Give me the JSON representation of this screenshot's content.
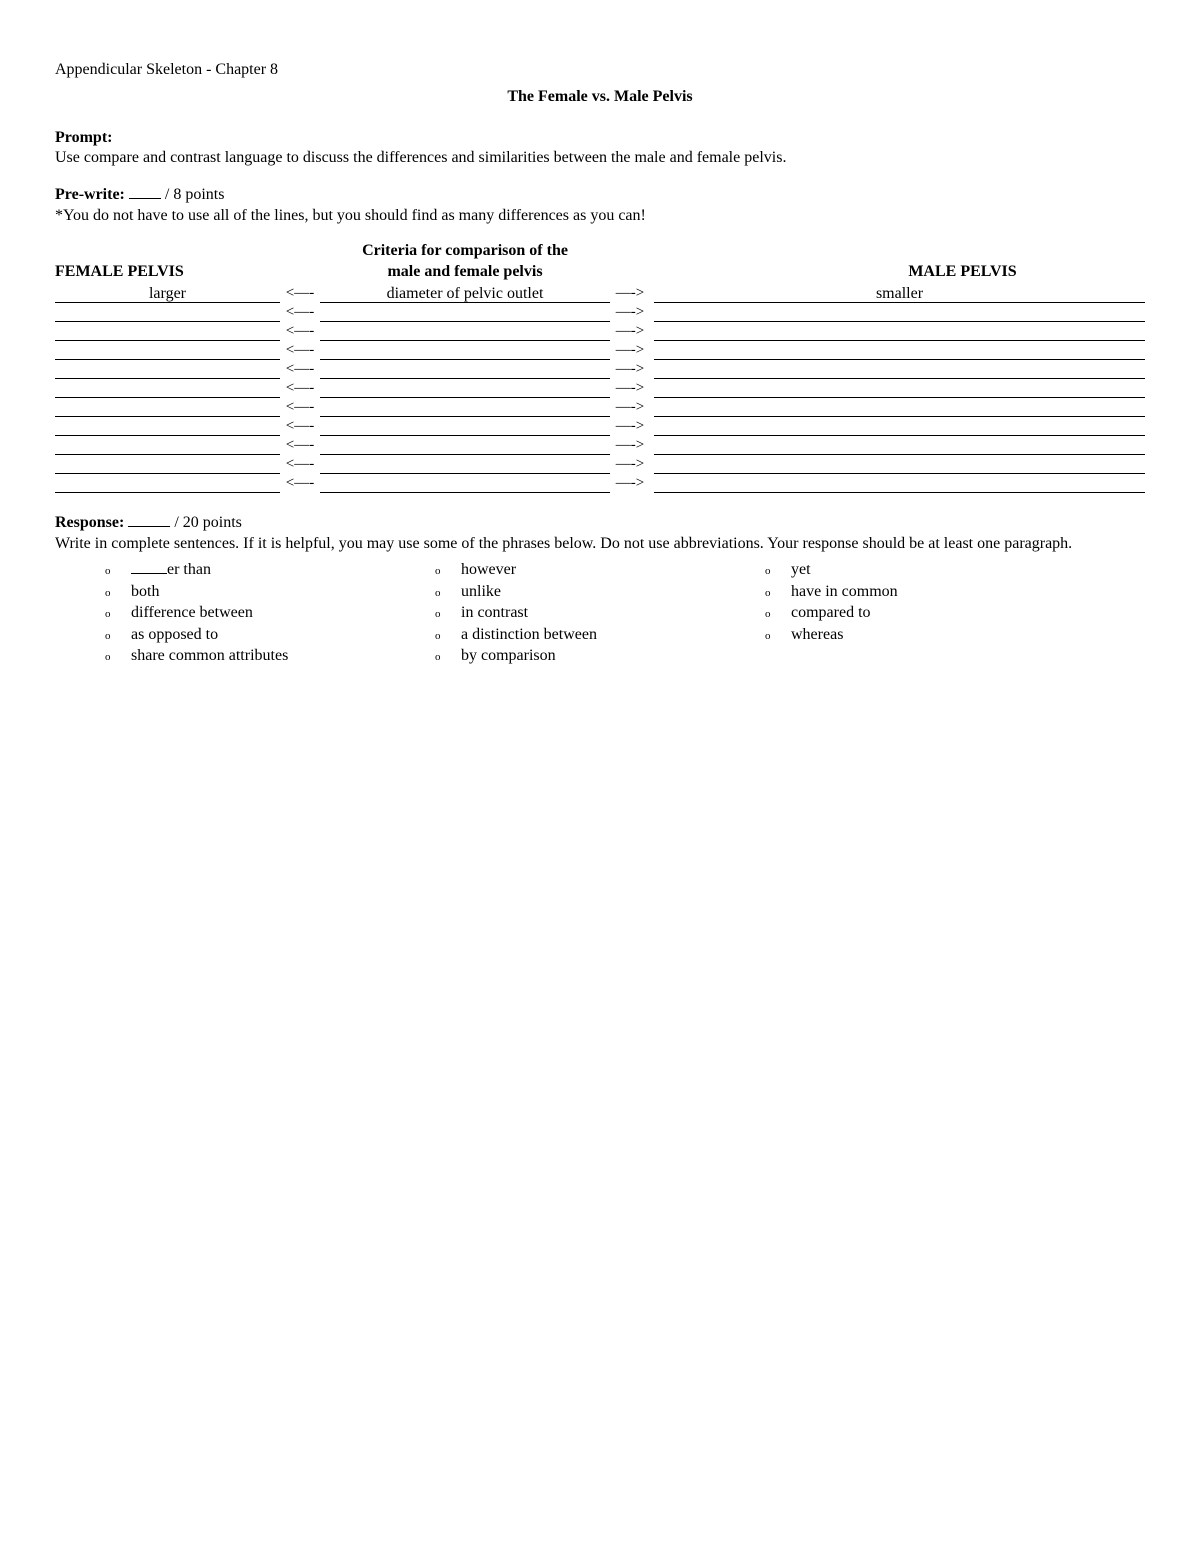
{
  "chapter": "Appendicular Skeleton - Chapter 8",
  "title": "The Female vs. Male Pelvis",
  "prompt": {
    "label": "Prompt:",
    "text": "Use compare and contrast language to discuss the differences and similarities between the male and female pelvis."
  },
  "prewrite": {
    "label": "Pre-write:",
    "points": "/ 8 points",
    "note": "*You do not have to use all of the lines, but you should find as many differences as you can!"
  },
  "table": {
    "head_female": "FEMALE PELVIS",
    "head_criteria_line1": "Criteria for comparison of the",
    "head_criteria_line2": "male and female pelvis",
    "head_male": "MALE PELVIS",
    "arrow_left": "<—-",
    "arrow_right": "—->",
    "rows": [
      {
        "female": "larger",
        "criteria": "diameter of pelvic outlet",
        "male": "smaller"
      },
      {
        "female": "",
        "criteria": "",
        "male": ""
      },
      {
        "female": "",
        "criteria": "",
        "male": ""
      },
      {
        "female": "",
        "criteria": "",
        "male": ""
      },
      {
        "female": "",
        "criteria": "",
        "male": ""
      },
      {
        "female": "",
        "criteria": "",
        "male": ""
      },
      {
        "female": "",
        "criteria": "",
        "male": ""
      },
      {
        "female": "",
        "criteria": "",
        "male": ""
      },
      {
        "female": "",
        "criteria": "",
        "male": ""
      },
      {
        "female": "",
        "criteria": "",
        "male": ""
      },
      {
        "female": "",
        "criteria": "",
        "male": ""
      }
    ]
  },
  "response": {
    "label": "Response:",
    "points": "/ 20 points",
    "instructions": "Write in complete sentences.  If it is helpful, you may use some of the phrases below.  Do not use abbreviations.  Your response should be at least one paragraph."
  },
  "phrases": {
    "col1": [
      "____er than",
      "both",
      "difference between",
      "as opposed to",
      "share common attributes"
    ],
    "col2": [
      "however",
      "unlike",
      "in contrast",
      "a distinction between",
      "by comparison"
    ],
    "col3": [
      "yet",
      "have in common",
      "compared to",
      "whereas"
    ]
  },
  "bullet": "o"
}
